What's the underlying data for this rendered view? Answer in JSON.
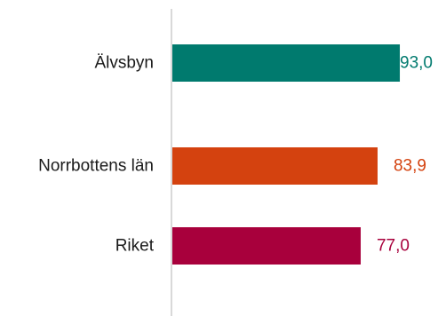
{
  "chart_data": {
    "type": "bar",
    "orientation": "horizontal",
    "categories": [
      "Älvsbyn",
      "Norrbottens län",
      "Riket"
    ],
    "values": [
      93.0,
      83.9,
      77.0
    ],
    "value_labels": [
      "93,0",
      "83,9",
      "77,0"
    ],
    "colors": [
      "#007a6e",
      "#d4420f",
      "#a8003c"
    ],
    "title": "",
    "xlabel": "",
    "ylabel": "",
    "xlim": [
      0,
      100
    ],
    "grid": false,
    "legend": "none"
  }
}
